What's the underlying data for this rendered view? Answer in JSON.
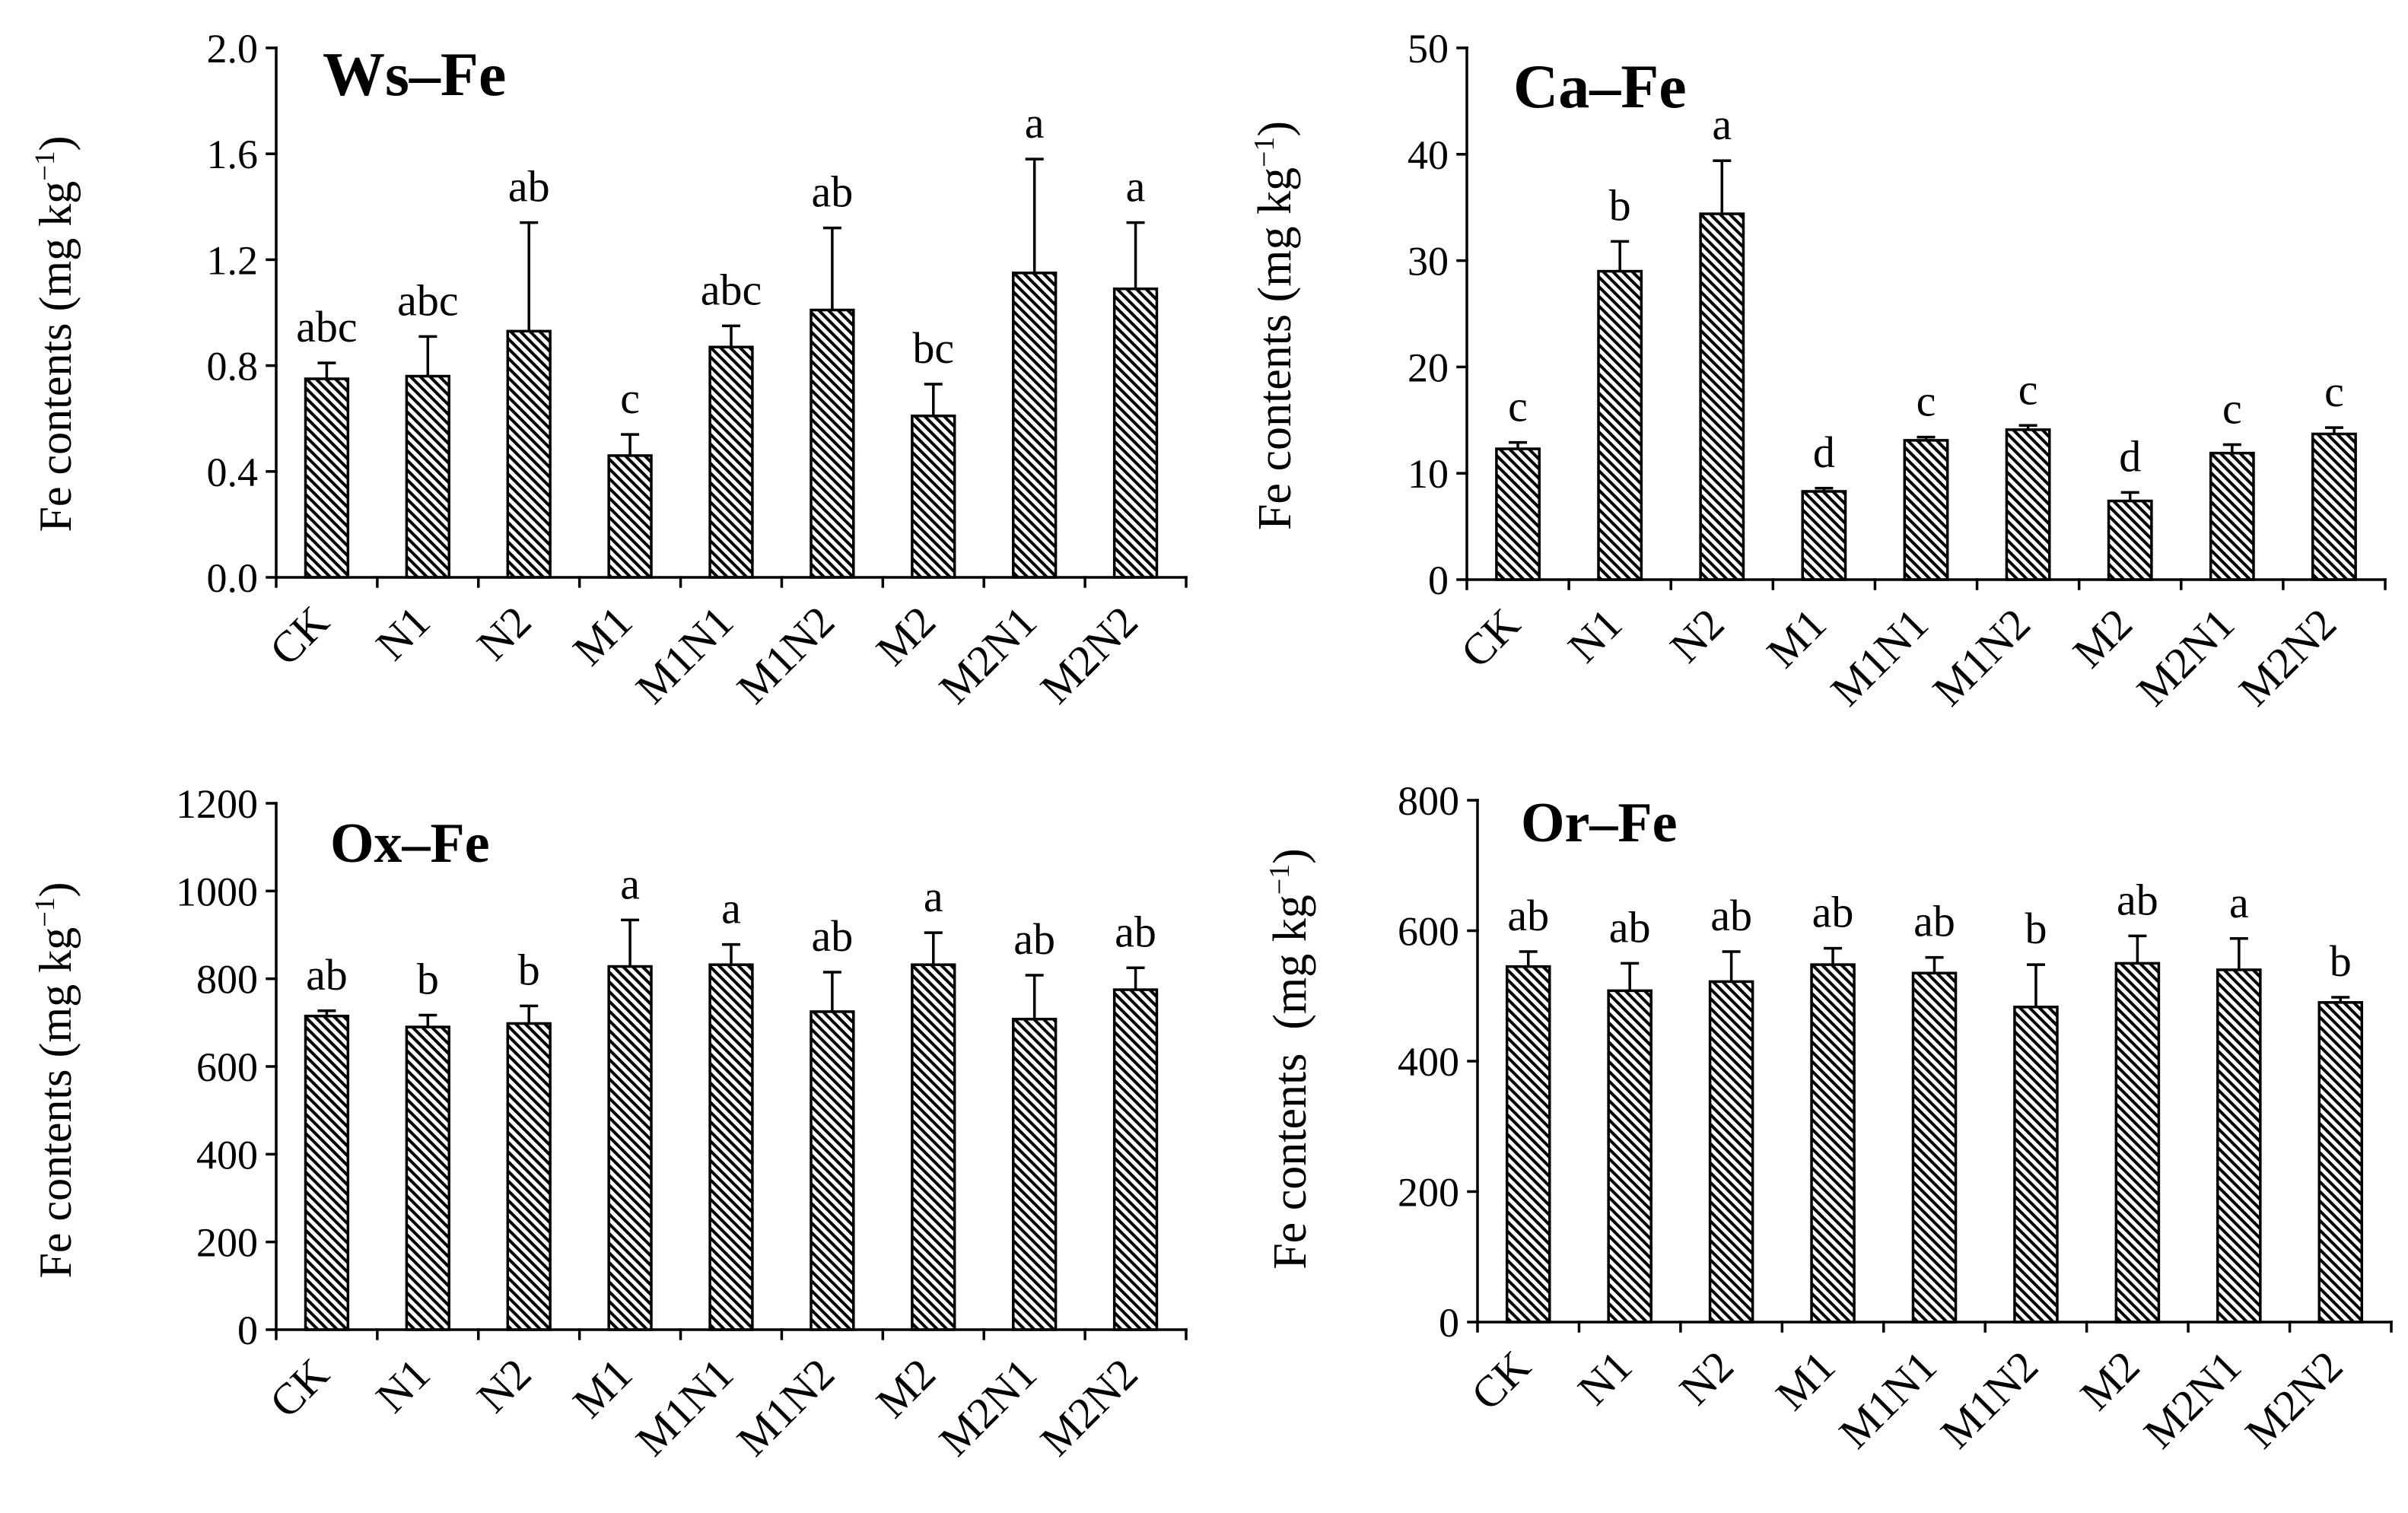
{
  "colors": {
    "ink": "#000000",
    "background": "#ffffff",
    "hatch": "#000000"
  },
  "chart_data": [
    {
      "type": "bar",
      "title": "Ws–Fe",
      "ylabel": "Fe contents (mg kg",
      "ylabel_sup": "−1",
      "ylabel_end": ")",
      "categories": [
        "CK",
        "N1",
        "N2",
        "M1",
        "M1N1",
        "M1N2",
        "M2",
        "M2N1",
        "M2N2"
      ],
      "values": [
        0.75,
        0.76,
        0.93,
        0.46,
        0.87,
        1.01,
        0.61,
        1.15,
        1.09
      ],
      "errors": [
        0.06,
        0.15,
        0.41,
        0.08,
        0.08,
        0.31,
        0.12,
        0.43,
        0.25
      ],
      "letters": [
        "abc",
        "abc",
        "ab",
        "c",
        "abc",
        "ab",
        "bc",
        "a",
        "a"
      ],
      "ylim": [
        0,
        2.0
      ],
      "yticks": [
        0,
        0.4,
        0.8,
        1.2,
        1.6,
        2.0
      ],
      "ytick_labels": [
        "0.0",
        "0.4",
        "0.8",
        "1.2",
        "1.6",
        "2.0"
      ]
    },
    {
      "type": "bar",
      "title": "Ca–Fe",
      "ylabel": "Fe contents (mg kg",
      "ylabel_sup": "−1",
      "ylabel_end": ")",
      "categories": [
        "CK",
        "N1",
        "N2",
        "M1",
        "M1N1",
        "M1N2",
        "M2",
        "M2N1",
        "M2N2"
      ],
      "values": [
        12.3,
        29.0,
        34.4,
        8.3,
        13.1,
        14.1,
        7.4,
        11.9,
        13.7
      ],
      "errors": [
        0.6,
        2.8,
        5.0,
        0.3,
        0.3,
        0.4,
        0.8,
        0.8,
        0.6
      ],
      "letters": [
        "c",
        "b",
        "a",
        "d",
        "c",
        "c",
        "d",
        "c",
        "c"
      ],
      "ylim": [
        0,
        50
      ],
      "yticks": [
        0,
        10,
        20,
        30,
        40,
        50
      ],
      "ytick_labels": [
        "0",
        "10",
        "20",
        "30",
        "40",
        "50"
      ]
    },
    {
      "type": "bar",
      "title": "Ox–Fe",
      "ylabel": "Fe contents (mg kg",
      "ylabel_sup": "−1",
      "ylabel_end": ")",
      "categories": [
        "CK",
        "N1",
        "N2",
        "M1",
        "M1N1",
        "M1N2",
        "M2",
        "M2N1",
        "M2N2"
      ],
      "values": [
        715,
        690,
        698,
        828,
        832,
        725,
        832,
        708,
        775
      ],
      "errors": [
        12,
        27,
        40,
        106,
        46,
        90,
        73,
        100,
        50
      ],
      "letters": [
        "ab",
        "b",
        "b",
        "a",
        "a",
        "ab",
        "a",
        "ab",
        "ab"
      ],
      "ylim": [
        0,
        1200
      ],
      "yticks": [
        0,
        200,
        400,
        600,
        800,
        1000,
        1200
      ],
      "ytick_labels": [
        "0",
        "200",
        "400",
        "600",
        "800",
        "1000",
        "1200"
      ]
    },
    {
      "type": "bar",
      "title": "Or–Fe",
      "ylabel": "Fe contents  (mg kg",
      "ylabel_sup": "−1",
      "ylabel_end": ")",
      "categories": [
        "CK",
        "N1",
        "N2",
        "M1",
        "M1N1",
        "M1N2",
        "M2",
        "M2N1",
        "M2N2"
      ],
      "values": [
        545,
        508,
        522,
        548,
        535,
        483,
        550,
        540,
        490
      ],
      "errors": [
        23,
        42,
        46,
        25,
        24,
        65,
        42,
        48,
        8
      ],
      "letters": [
        "ab",
        "ab",
        "ab",
        "ab",
        "ab",
        "b",
        "ab",
        "a",
        "b"
      ],
      "ylim": [
        0,
        800
      ],
      "yticks": [
        0,
        200,
        400,
        600,
        800
      ],
      "ytick_labels": [
        "0",
        "200",
        "400",
        "600",
        "800"
      ]
    }
  ]
}
